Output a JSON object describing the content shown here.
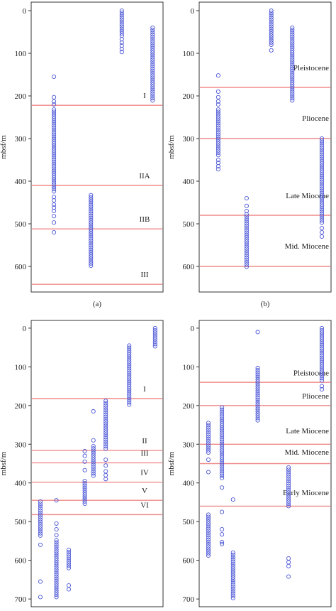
{
  "figure": {
    "colors": {
      "point": "#4a55d6",
      "boundary": "#f08a8a",
      "axis": "#333333"
    }
  },
  "chart_data": [
    {
      "type": "scatter",
      "caption": "(a)",
      "ylabel": "mbsf/m",
      "ylim": [
        660,
        -20
      ],
      "yticks": [
        0,
        100,
        200,
        300,
        400,
        500,
        600
      ],
      "yinverted": true,
      "xticks": false,
      "columns": [
        {
          "x": 0.15,
          "ranges": [
            [
              232,
              425
            ]
          ],
          "points": [
            155,
            203,
            213,
            220,
            437,
            445,
            455,
            462,
            470,
            482,
            497,
            520
          ]
        },
        {
          "x": 0.45,
          "ranges": [
            [
              433,
              603
            ]
          ],
          "points": []
        },
        {
          "x": 0.7,
          "ranges": [
            [
              0,
              60
            ]
          ],
          "points": [
            67,
            75,
            82,
            90,
            97
          ]
        },
        {
          "x": 0.95,
          "ranges": [
            [
              40,
              215
            ]
          ],
          "points": []
        }
      ],
      "boundaries": [
        {
          "y": 222,
          "label": "I"
        },
        {
          "y": 410,
          "label": "IIA"
        },
        {
          "y": 512,
          "label": "IIB"
        },
        {
          "y": 642,
          "label": "III"
        }
      ]
    },
    {
      "type": "scatter",
      "caption": "(b)",
      "ylabel": "mbsf/m",
      "ylim": [
        660,
        -20
      ],
      "yticks": [
        0,
        100,
        200,
        300,
        400,
        500,
        600
      ],
      "yinverted": true,
      "xticks": false,
      "columns": [
        {
          "x": 0.12,
          "ranges": [
            [
              232,
              340
            ]
          ],
          "points": [
            152,
            190,
            203,
            213,
            220,
            350,
            357,
            365,
            372
          ]
        },
        {
          "x": 0.35,
          "ranges": [
            [
              478,
              602
            ]
          ],
          "points": [
            440,
            458,
            470
          ]
        },
        {
          "x": 0.55,
          "ranges": [
            [
              0,
              85
            ]
          ],
          "points": [
            93
          ]
        },
        {
          "x": 0.72,
          "ranges": [
            [
              40,
              212
            ]
          ],
          "points": []
        },
        {
          "x": 0.96,
          "ranges": [
            [
              300,
              500
            ]
          ],
          "points": [
            510,
            520,
            530
          ]
        }
      ],
      "boundaries": [
        {
          "y": 180,
          "label": ""
        },
        {
          "y": 300,
          "label": ""
        },
        {
          "y": 480,
          "label": ""
        },
        {
          "y": 600,
          "label": ""
        }
      ],
      "annotations": [
        {
          "text": "Pleistocene",
          "y": 140
        },
        {
          "text": "Pliocene",
          "y": 258
        },
        {
          "text": "Late Miocene",
          "y": 440
        },
        {
          "text": "Mid. Miocene",
          "y": 558
        }
      ]
    },
    {
      "type": "scatter",
      "caption": "(c)",
      "ylabel": "mbsf/m",
      "ylim": [
        720,
        -20
      ],
      "yticks": [
        0,
        100,
        200,
        300,
        400,
        500,
        600,
        700
      ],
      "yinverted": true,
      "xticks": false,
      "columns": [
        {
          "x": 0.04,
          "ranges": [
            [
              448,
              540
            ]
          ],
          "points": [
            560,
            655,
            695
          ]
        },
        {
          "x": 0.17,
          "ranges": [
            [
              548,
              700
            ]
          ],
          "points": [
            445,
            505,
            520,
            535
          ]
        },
        {
          "x": 0.27,
          "ranges": [
            [
              573,
              620
            ]
          ],
          "points": [
            665,
            675
          ]
        },
        {
          "x": 0.4,
          "ranges": [
            [
              395,
              455
            ]
          ],
          "points": [
            318,
            330,
            345,
            367
          ]
        },
        {
          "x": 0.47,
          "ranges": [
            [
              305,
              385
            ]
          ],
          "points": [
            215,
            290
          ]
        },
        {
          "x": 0.57,
          "ranges": [
            [
              188,
              315
            ]
          ],
          "points": [
            340,
            355,
            370,
            380,
            390
          ]
        },
        {
          "x": 0.76,
          "ranges": [
            [
              45,
              198
            ]
          ],
          "points": []
        },
        {
          "x": 0.97,
          "ranges": [
            [
              0,
              48
            ]
          ],
          "points": []
        }
      ],
      "boundaries": [
        {
          "y": 182,
          "label": "I"
        },
        {
          "y": 316,
          "label": "II"
        },
        {
          "y": 348,
          "label": "III"
        },
        {
          "y": 398,
          "label": "IV"
        },
        {
          "y": 445,
          "label": "V"
        },
        {
          "y": 482,
          "label": "VI"
        }
      ]
    },
    {
      "type": "scatter",
      "caption": "(d)",
      "ylabel": "mbsf/m",
      "ylim": [
        720,
        -20
      ],
      "yticks": [
        0,
        100,
        200,
        300,
        400,
        500,
        600,
        700
      ],
      "yinverted": true,
      "xticks": false,
      "columns": [
        {
          "x": 0.04,
          "ranges": [
            [
              245,
              325
            ],
            [
              482,
              592
            ]
          ],
          "points": [
            340,
            372
          ]
        },
        {
          "x": 0.15,
          "ranges": [
            [
              205,
              390
            ]
          ],
          "points": [
            412,
            475,
            520,
            533,
            553,
            558
          ]
        },
        {
          "x": 0.24,
          "ranges": [
            [
              580,
              702
            ]
          ],
          "points": [
            443
          ]
        },
        {
          "x": 0.44,
          "ranges": [
            [
              103,
              242
            ]
          ],
          "points": [
            10
          ]
        },
        {
          "x": 0.69,
          "ranges": [
            [
              360,
              465
            ]
          ],
          "points": [
            595,
            605,
            615,
            642
          ]
        },
        {
          "x": 0.96,
          "ranges": [
            [
              0,
              140
            ]
          ],
          "points": [
            150,
            158
          ]
        }
      ],
      "boundaries": [
        {
          "y": 140,
          "label": ""
        },
        {
          "y": 200,
          "label": ""
        },
        {
          "y": 300,
          "label": ""
        },
        {
          "y": 350,
          "label": ""
        },
        {
          "y": 460,
          "label": ""
        }
      ],
      "annotations": [
        {
          "text": "Pleistocene",
          "y": 122
        },
        {
          "text": "Pliocene",
          "y": 182
        },
        {
          "text": "Late Miocene",
          "y": 272
        },
        {
          "text": "Mid. Miocene",
          "y": 327
        },
        {
          "text": "Early Miocene",
          "y": 432
        }
      ]
    }
  ]
}
